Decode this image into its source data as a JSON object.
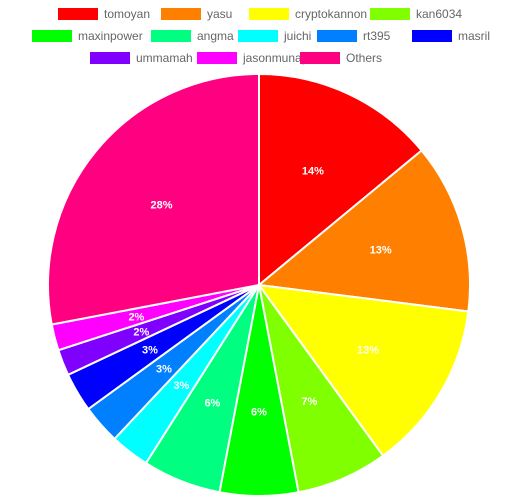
{
  "chart_data": {
    "type": "pie",
    "legend_position": "top",
    "slices": [
      {
        "label": "tomoyan",
        "value": 14,
        "color": "#ff0000"
      },
      {
        "label": "yasu",
        "value": 13,
        "color": "#ff8000"
      },
      {
        "label": "cryptokannon",
        "value": 13,
        "color": "#ffff00"
      },
      {
        "label": "kan6034",
        "value": 7,
        "color": "#80ff00"
      },
      {
        "label": "maxinpower",
        "value": 6,
        "color": "#00ff00"
      },
      {
        "label": "angma",
        "value": 6,
        "color": "#00ff80"
      },
      {
        "label": "juichi",
        "value": 3,
        "color": "#00ffff"
      },
      {
        "label": "rt395",
        "value": 3,
        "color": "#0080ff"
      },
      {
        "label": "masril",
        "value": 3,
        "color": "#0000ff"
      },
      {
        "label": "ummamah",
        "value": 2,
        "color": "#8000ff"
      },
      {
        "label": "jasonmunapasee",
        "value": 2,
        "color": "#ff00ff"
      },
      {
        "label": "Others",
        "value": 28,
        "color": "#ff0080"
      }
    ]
  }
}
